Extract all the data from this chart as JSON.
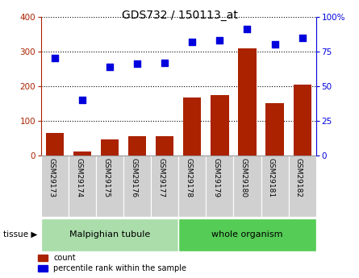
{
  "title": "GDS732 / 150113_at",
  "categories": [
    "GSM29173",
    "GSM29174",
    "GSM29175",
    "GSM29176",
    "GSM29177",
    "GSM29178",
    "GSM29179",
    "GSM29180",
    "GSM29181",
    "GSM29182"
  ],
  "bar_values": [
    65,
    12,
    48,
    57,
    57,
    168,
    175,
    310,
    152,
    205
  ],
  "scatter_values": [
    70,
    40,
    64,
    66,
    67,
    82,
    83,
    91,
    80,
    85
  ],
  "bar_color": "#aa2200",
  "scatter_color": "#0000dd",
  "left_ylim": [
    0,
    400
  ],
  "right_ylim": [
    0,
    100
  ],
  "left_yticks": [
    0,
    100,
    200,
    300,
    400
  ],
  "right_yticks": [
    0,
    25,
    50,
    75,
    100
  ],
  "right_yticklabels": [
    "0",
    "25",
    "50",
    "75",
    "100%"
  ],
  "tissue_groups": [
    {
      "label": "Malpighian tubule",
      "start": 0,
      "end": 4,
      "color": "#aaddaa"
    },
    {
      "label": "whole organism",
      "start": 5,
      "end": 9,
      "color": "#55cc55"
    }
  ],
  "legend_count_label": "count",
  "legend_pct_label": "percentile rank within the sample",
  "tissue_label": "tissue ▶",
  "xtick_bg": "#cccccc",
  "plot_bg": "#ffffff",
  "border_color": "#999999"
}
